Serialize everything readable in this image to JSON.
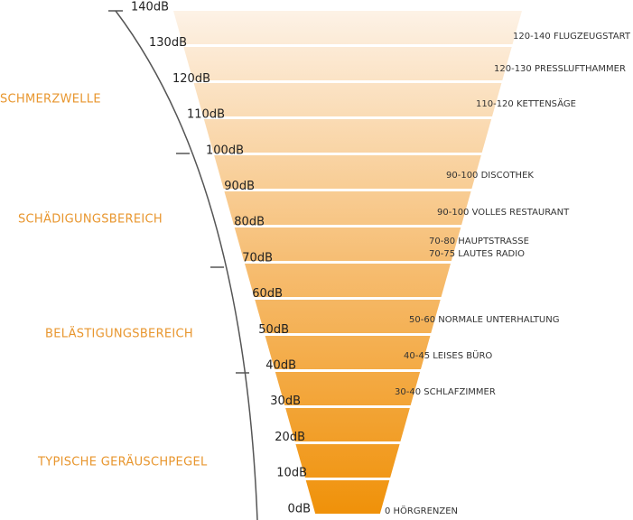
{
  "levels": [
    "140dB",
    "130dB",
    "120dB",
    "110dB",
    "100dB",
    "90dB",
    "80dB",
    "70dB",
    "60dB",
    "50dB",
    "40dB",
    "30dB",
    "20dB",
    "10dB",
    "0dB"
  ],
  "zones": [
    "SCHMERZWELLE",
    "SCHÄDIGUNGSBEREICH",
    "BELÄSTIGUNGSBEREICH",
    "TYPISCHE GERÄUSCHPEGEL"
  ],
  "examples": [
    "120-140 FLUGZEUGSTART",
    "120-130 PRESSLUFTHAMMER",
    "110-120 KETTENSÄGE",
    "90-100 DISCOTHEK",
    "90-100 VOLLES RESTAURANT",
    "70-80 HAUPTSTRASSE",
    "70-75 LAUTES RADIO",
    "50-60 NORMALE UNTERHALTUNG",
    "40-45 LEISES BÜRO",
    "30-40 SCHLAFZIMMER",
    "0 HÖRGRENZEN"
  ]
}
